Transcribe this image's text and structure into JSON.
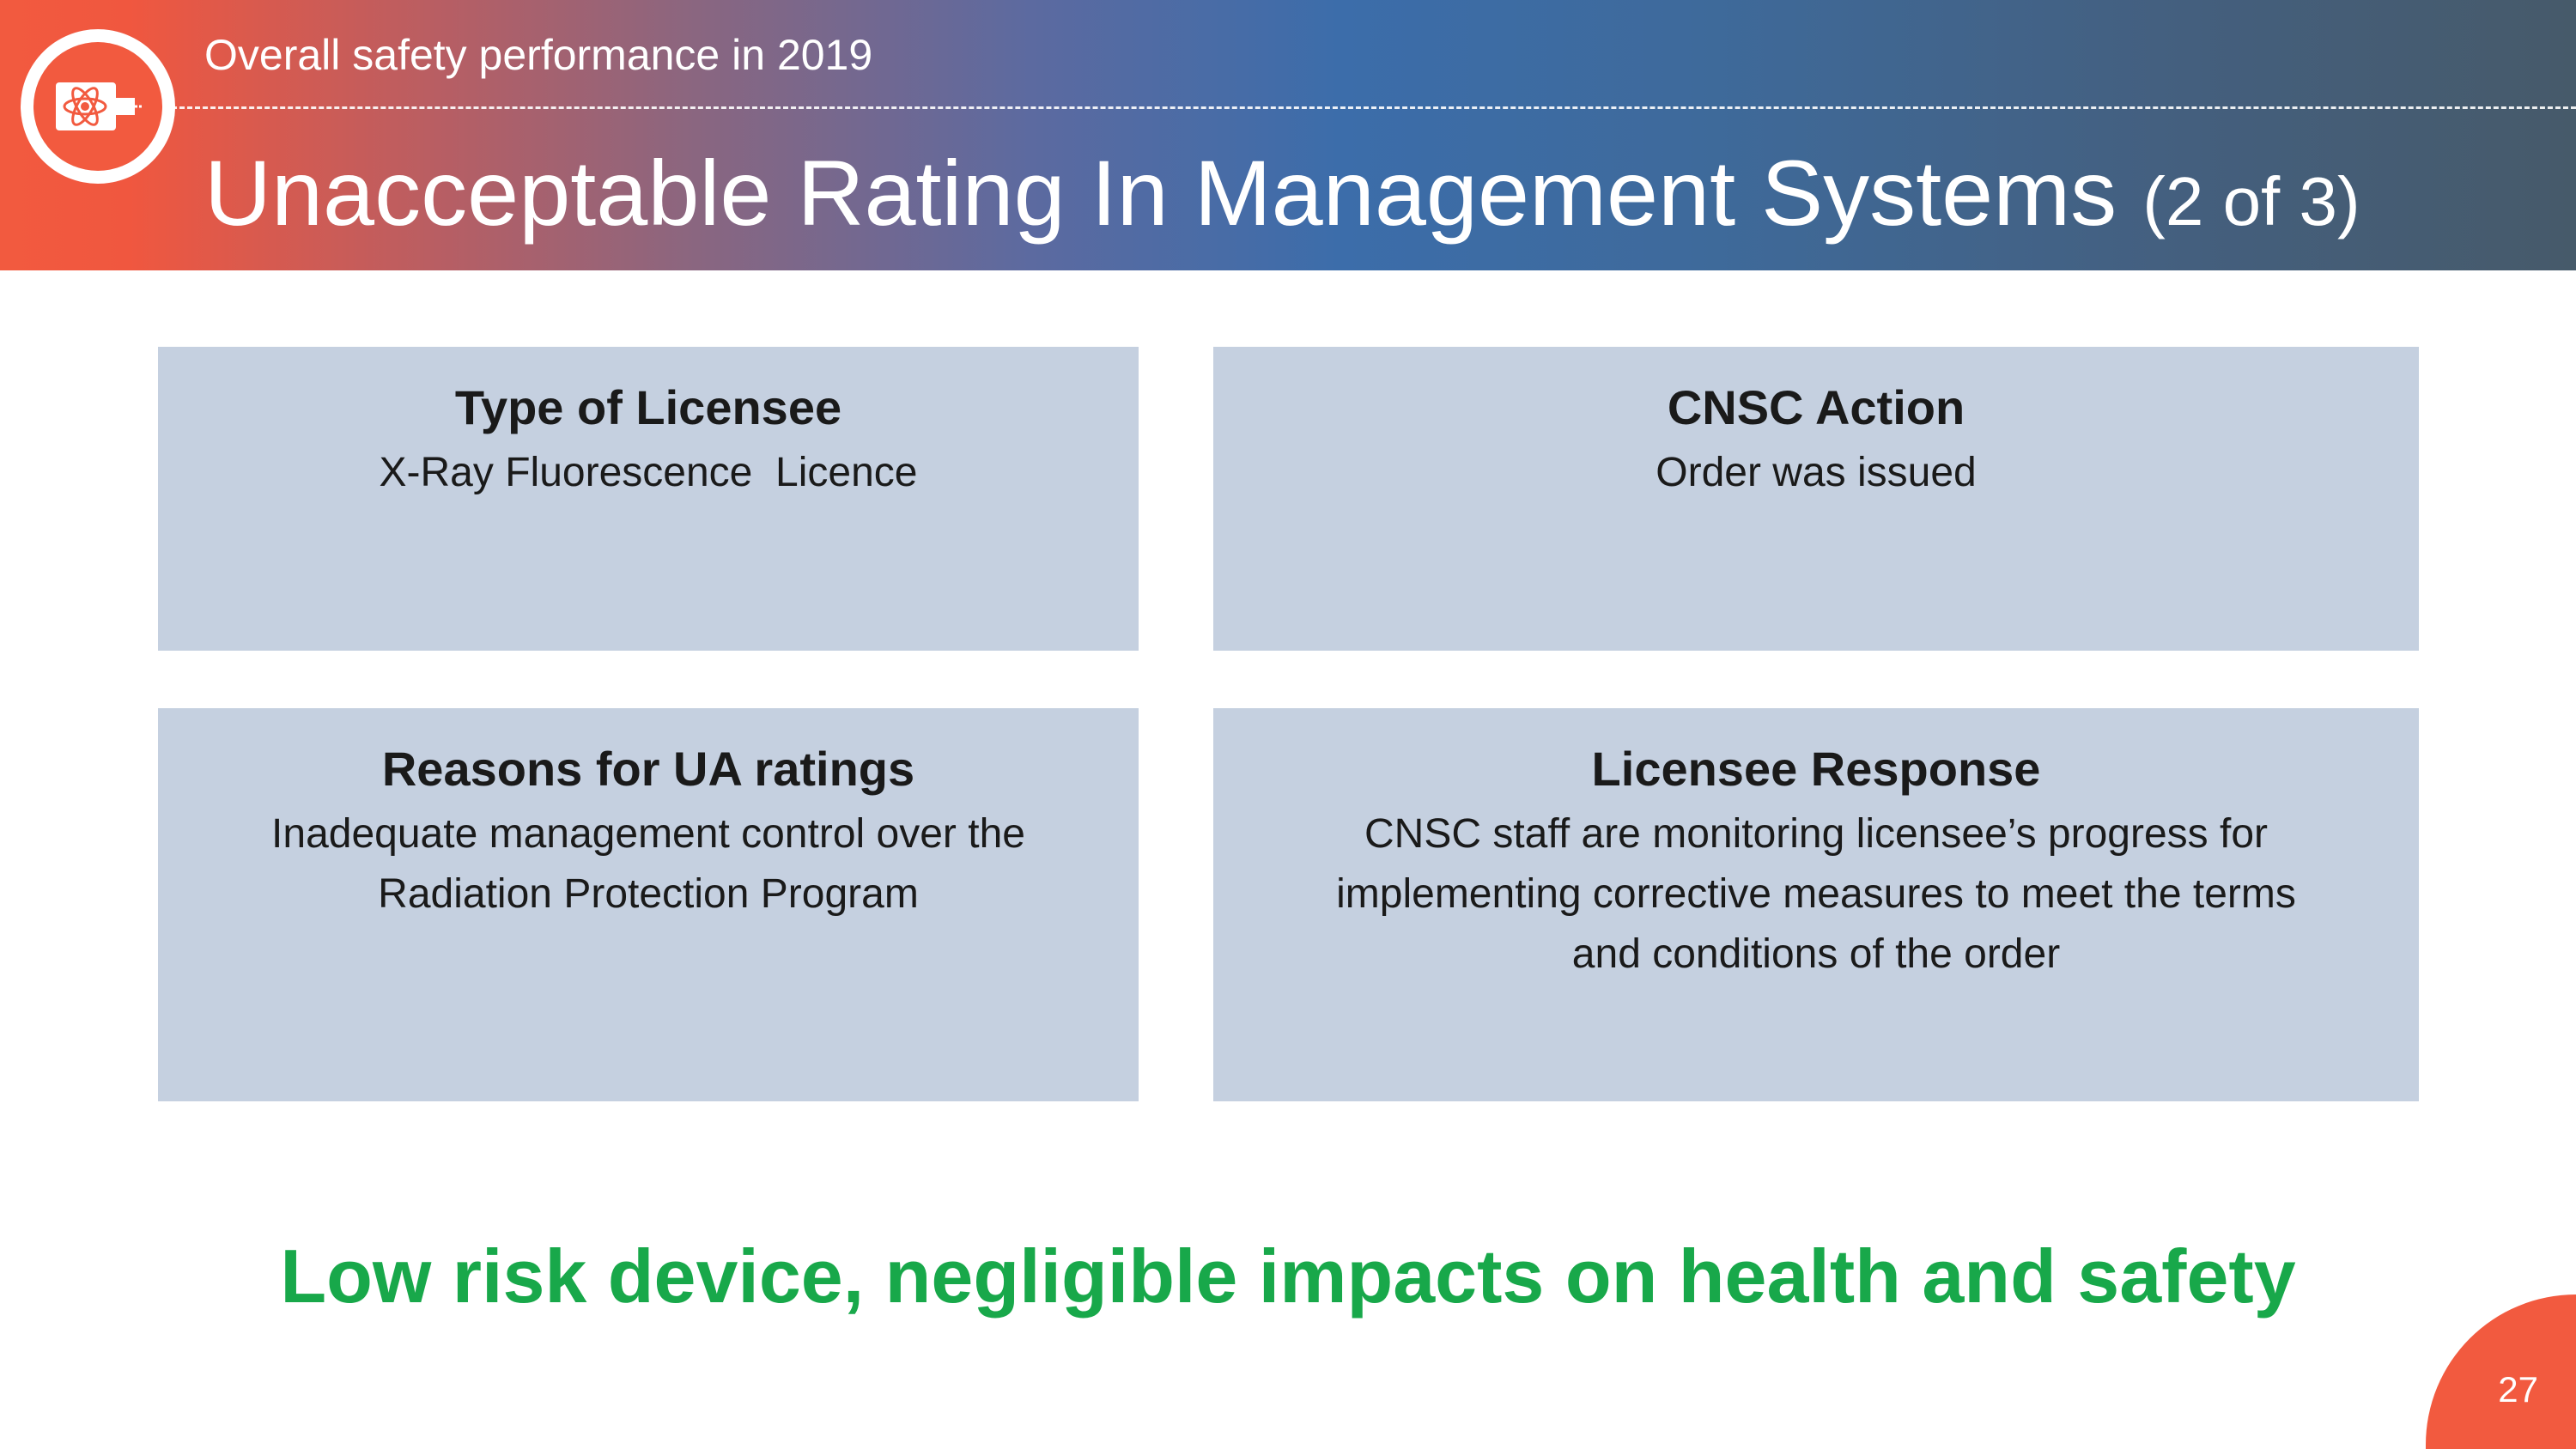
{
  "header": {
    "subtitle": "Overall safety performance in 2019",
    "title": "Unacceptable Rating In Management Systems",
    "title_part": "(2 of 3)",
    "logo_icon": "atom-gauge-icon"
  },
  "boxes": {
    "type_of_licensee": {
      "heading": "Type of Licensee",
      "body": "X-Ray Fluorescence  Licence"
    },
    "cnsc_action": {
      "heading": "CNSC Action",
      "body": "Order was issued"
    },
    "reasons": {
      "heading": "Reasons for UA ratings",
      "body_lines": [
        "Inadequate management control over the",
        "Radiation Protection Program"
      ]
    },
    "licensee_response": {
      "heading": "Licensee Response",
      "body_lines": [
        "CNSC staff are monitoring licensee’s progress for",
        "implementing corrective measures to meet the terms",
        "and conditions of the order"
      ]
    }
  },
  "conclusion": "Low risk device, negligible impacts on health and safety",
  "page_number": "27",
  "colors": {
    "accent_orange": "#f25a3f",
    "banner_blue": "#3c6daa",
    "box_fill": "#c5d0e0",
    "conclusion_green": "#18a84a"
  }
}
